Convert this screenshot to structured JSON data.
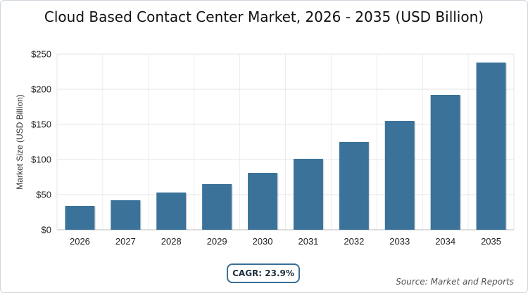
{
  "chart_data": {
    "type": "bar",
    "title": "Cloud Based Contact Center Market, 2026 - 2035 (USD Billion)",
    "xlabel": "",
    "ylabel": "Market Size (USD Billion)",
    "categories": [
      "2026",
      "2027",
      "2028",
      "2029",
      "2030",
      "2031",
      "2032",
      "2033",
      "2034",
      "2035"
    ],
    "values": [
      34,
      42,
      53,
      65,
      81,
      101,
      125,
      155,
      192,
      238
    ],
    "ylim": [
      0,
      250
    ],
    "yticks": [
      0,
      50,
      100,
      150,
      200,
      250
    ],
    "ytick_labels": [
      "$0",
      "$50",
      "$100",
      "$150",
      "$200",
      "$250"
    ],
    "grid": true,
    "bar_color": "#3a7299"
  },
  "annotations": {
    "cagr": "CAGR: 23.9%",
    "source": "Source: Market and Reports"
  },
  "colors": {
    "badge_border": "#3a6e95"
  }
}
